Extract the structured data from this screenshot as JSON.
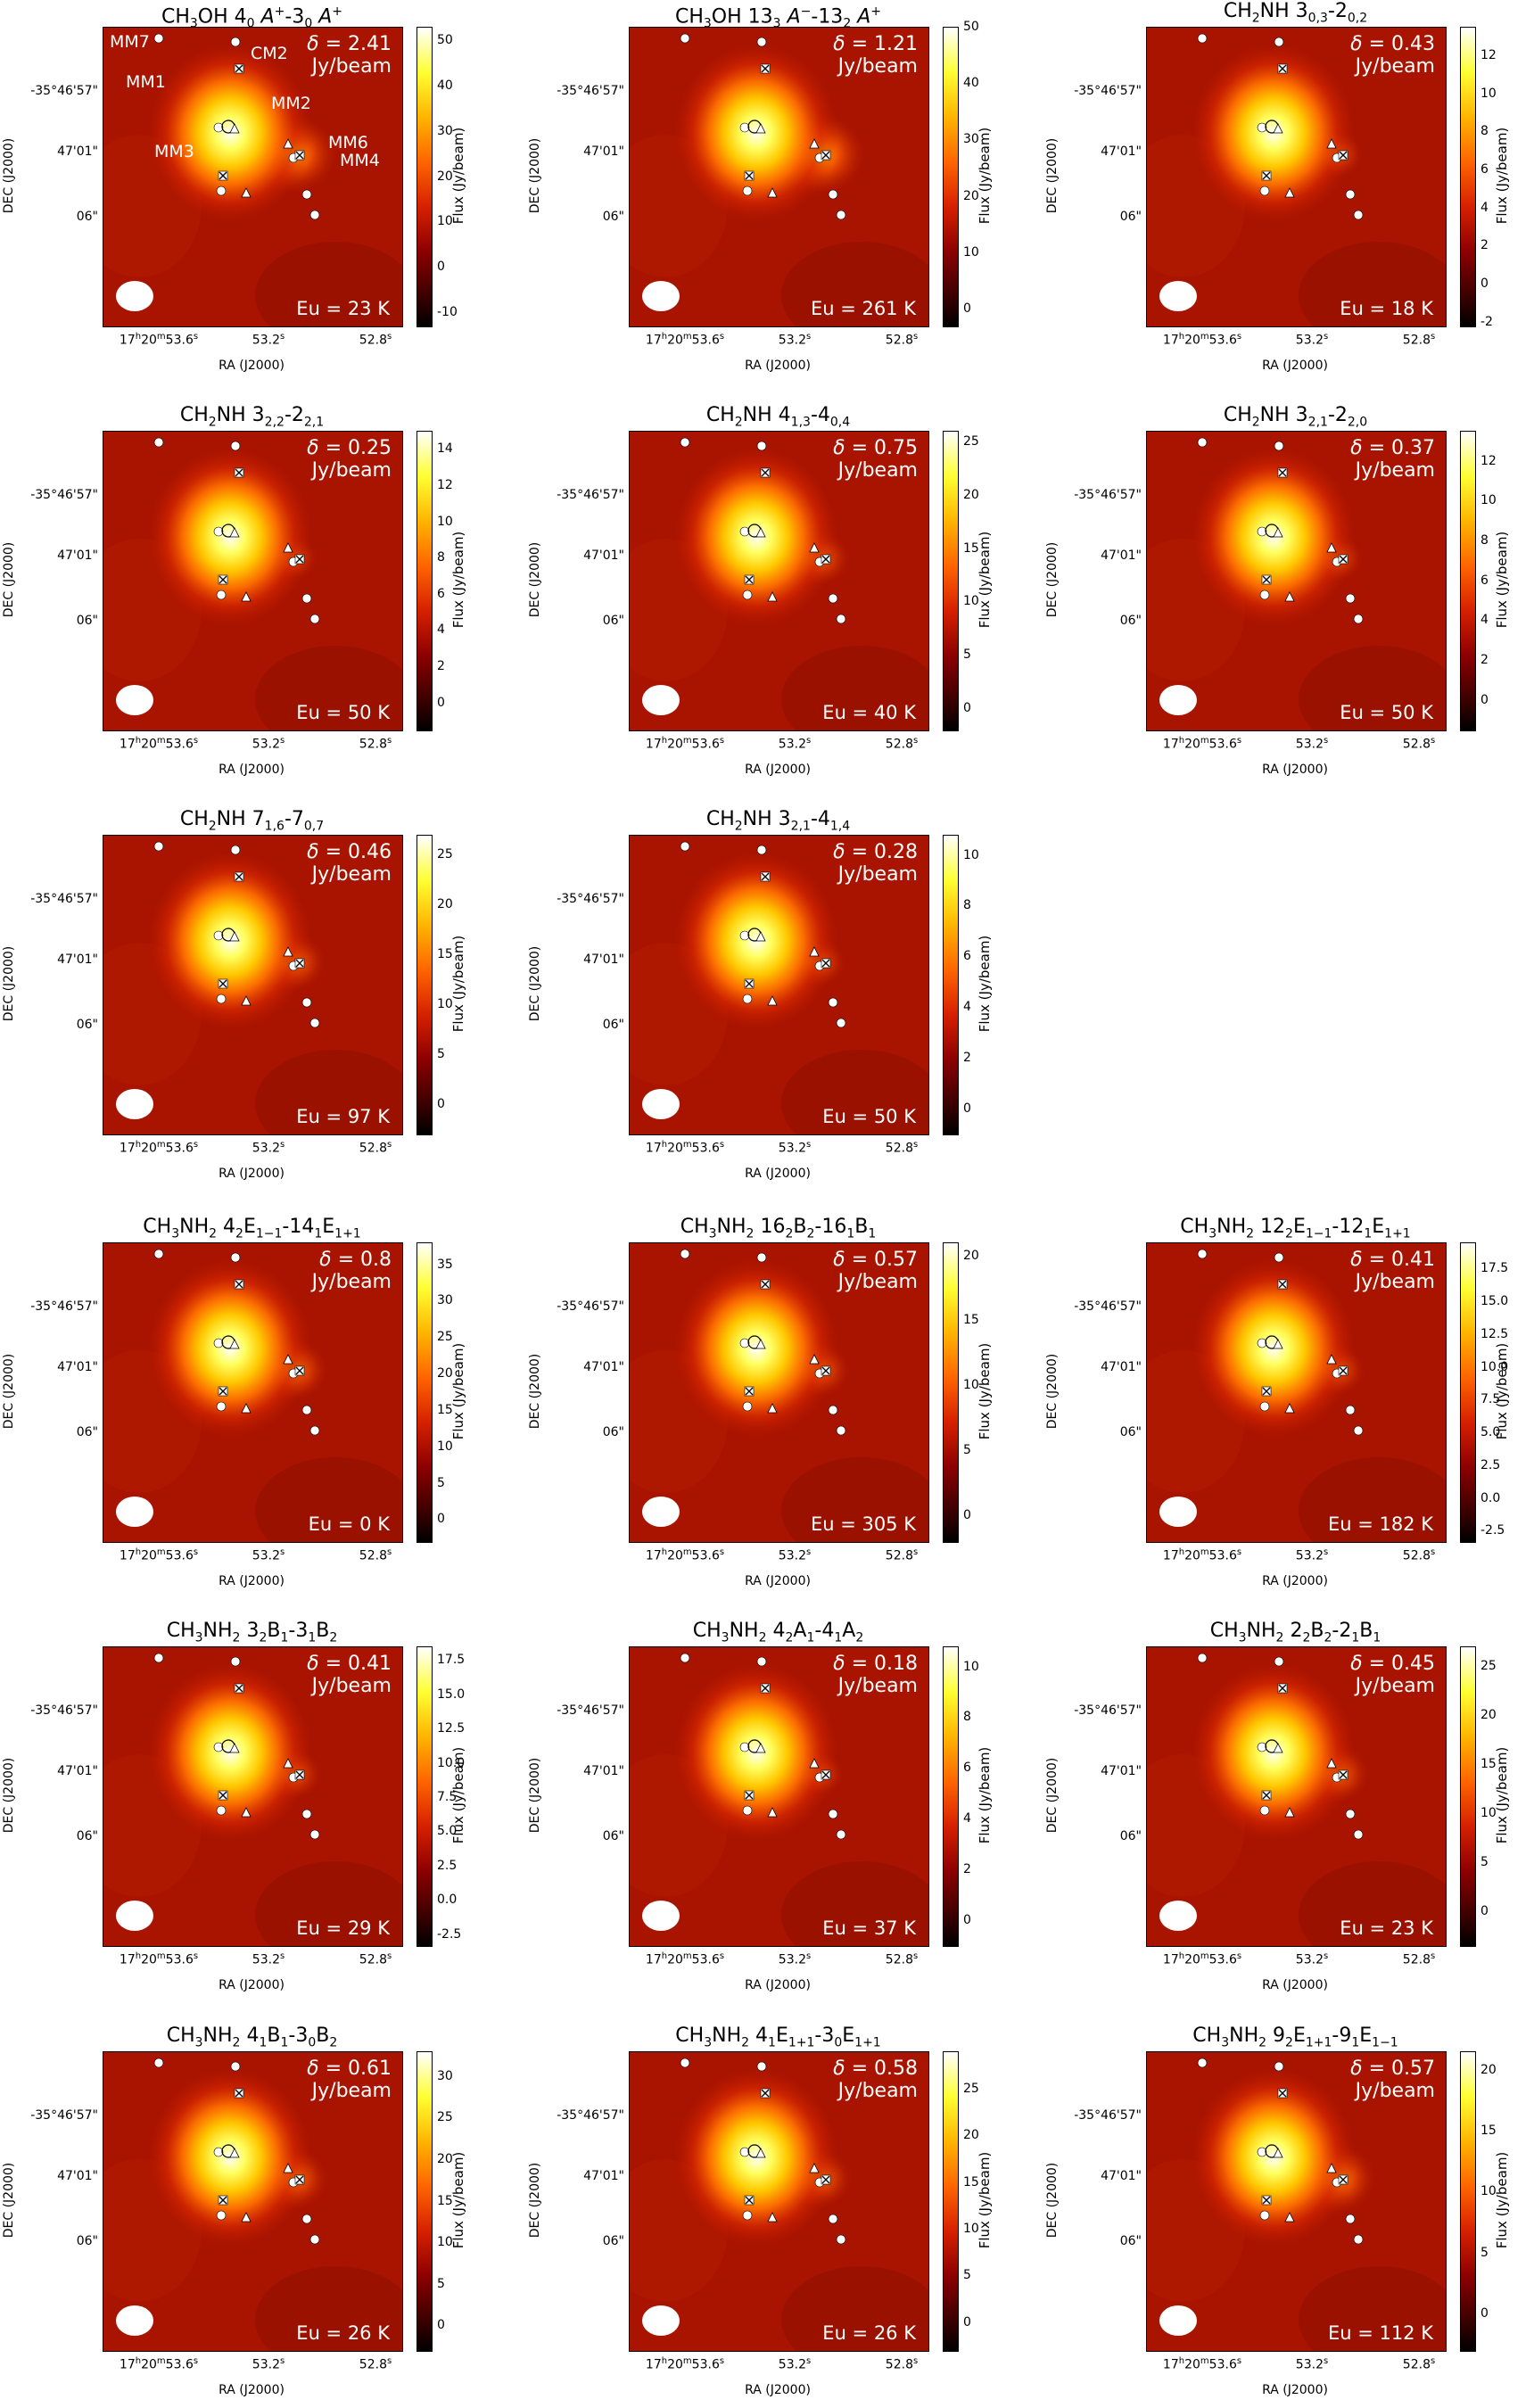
{
  "chart_data": {
    "type": "heatmap",
    "figure": "Integrated intensity maps of CH3OH, CH2NH and CH3NH2 transitions",
    "axes": {
      "xlabel": "RA (J2000)",
      "ylabel": "DEC (J2000)",
      "colorbar_label": "Flux (Jy/beam)",
      "xticks": [
        "17h20m53.6s",
        "53.2s",
        "52.8s"
      ],
      "yticks": [
        "-35°46'57\"",
        "47'01\"",
        "06\""
      ]
    },
    "source_labels": [
      "MM7",
      "MM1",
      "CM2",
      "MM2",
      "MM3",
      "MM6",
      "MM4"
    ],
    "panels": [
      {
        "name": "CH₃OH 4₀ A⁺-3₀ A⁺",
        "mol": "CH<sub>3</sub>OH",
        "q": "4<sub>0</sub> <i>A</i><sup>+</sup>-3<sub>0</sub> <i>A</i><sup>+</sup>",
        "delta": "2.41",
        "eu": "23 K",
        "cticks": [
          "-10",
          "0",
          "10",
          "20",
          "30",
          "40",
          "50"
        ],
        "cmin": -13,
        "cmax": 53,
        "peak": 53,
        "mm2": 0.55,
        "labels": true
      },
      {
        "name": "CH₃OH 13₃ A⁻-13₂ A⁺",
        "mol": "CH<sub>3</sub>OH",
        "q": "13<sub>3</sub> <i>A</i><sup>−</sup>-13<sub>2</sub> <i>A</i><sup>+</sup>",
        "delta": "1.21",
        "eu": "261 K",
        "cticks": [
          "0",
          "10",
          "20",
          "30",
          "40",
          "50"
        ],
        "cmin": -3,
        "cmax": 50,
        "peak": 49,
        "mm2": 0.6,
        "labels": false
      },
      {
        "name": "CH₂NH 3₀,₃-2₀,₂",
        "mol": "CH<sub>2</sub>NH",
        "q": "3<sub>0,3</sub>-2<sub>0,2</sub>",
        "delta": "0.43",
        "eu": "18 K",
        "cticks": [
          "-2",
          "0",
          "2",
          "4",
          "6",
          "8",
          "10",
          "12"
        ],
        "cmin": -2.2,
        "cmax": 13.5,
        "peak": 13,
        "mm2": 0.15,
        "labels": false
      },
      {
        "name": "CH₂NH 3₂,₂-2₂,₁",
        "mol": "CH<sub>2</sub>NH",
        "q": "3<sub>2,2</sub>-2<sub>2,1</sub>",
        "delta": "0.25",
        "eu": "50 K",
        "cticks": [
          "0",
          "2",
          "4",
          "6",
          "8",
          "10",
          "12",
          "14"
        ],
        "cmin": -1.5,
        "cmax": 15,
        "peak": 14.5,
        "mm2": 0.1,
        "labels": false
      },
      {
        "name": "CH₂NH 4₁,₃-4₀,₄",
        "mol": "CH<sub>2</sub>NH",
        "q": "4<sub>1,3</sub>-4<sub>0,4</sub>",
        "delta": "0.75",
        "eu": "40 K",
        "cticks": [
          "0",
          "5",
          "10",
          "15",
          "20",
          "25"
        ],
        "cmin": -2,
        "cmax": 26,
        "peak": 25,
        "mm2": 0.25,
        "labels": false
      },
      {
        "name": "CH₂NH 3₂,₁-2₂,₀",
        "mol": "CH<sub>2</sub>NH",
        "q": "3<sub>2,1</sub>-2<sub>2,0</sub>",
        "delta": "0.37",
        "eu": "50 K",
        "cticks": [
          "0",
          "2",
          "4",
          "6",
          "8",
          "10",
          "12"
        ],
        "cmin": -1.5,
        "cmax": 13.5,
        "peak": 13,
        "mm2": 0.15,
        "labels": false
      },
      {
        "name": "CH₂NH 7₁,₆-7₀,₇",
        "mol": "CH<sub>2</sub>NH",
        "q": "7<sub>1,6</sub>-7<sub>0,7</sub>",
        "delta": "0.46",
        "eu": "97 K",
        "cticks": [
          "0",
          "5",
          "10",
          "15",
          "20",
          "25"
        ],
        "cmin": -3,
        "cmax": 27,
        "peak": 26,
        "mm2": 0.3,
        "labels": false
      },
      {
        "name": "CH₂NH 3₂,₁-4₁,₄",
        "mol": "CH<sub>2</sub>NH",
        "q": "3<sub>2,1</sub>-4<sub>1,4</sub>",
        "delta": "0.28",
        "eu": "50 K",
        "cticks": [
          "0",
          "2",
          "4",
          "6",
          "8",
          "10"
        ],
        "cmin": -1,
        "cmax": 10.8,
        "peak": 10.5,
        "mm2": 0.15,
        "labels": false
      },
      {
        "name": "CH₃NH₂ 4₂E₁₋₁-14₁E₁₊₁",
        "mol": "CH<sub>3</sub>NH<sub>2</sub>",
        "q": "4<sub>2</sub>E<sub>1−1</sub>-14<sub>1</sub>E<sub>1+1</sub>",
        "delta": "0.8",
        "eu": "0 K",
        "cticks": [
          "0",
          "5",
          "10",
          "15",
          "20",
          "25",
          "30",
          "35"
        ],
        "cmin": -3,
        "cmax": 38,
        "peak": 37,
        "mm2": 0.35,
        "labels": false
      },
      {
        "name": "CH₃NH₂ 16₂B₂-16₁B₁",
        "mol": "CH<sub>3</sub>NH<sub>2</sub>",
        "q": "16<sub>2</sub>B<sub>2</sub>-16<sub>1</sub>B<sub>1</sub>",
        "delta": "0.57",
        "eu": "305 K",
        "cticks": [
          "0",
          "5",
          "10",
          "15",
          "20"
        ],
        "cmin": -2,
        "cmax": 21,
        "peak": 20.5,
        "mm2": 0.25,
        "labels": false
      },
      {
        "name": "CH₃NH₂ 12₂E₁₋₁-12₁E₁₊₁",
        "mol": "CH<sub>3</sub>NH<sub>2</sub>",
        "q": "12<sub>2</sub>E<sub>1−1</sub>-12<sub>1</sub>E<sub>1+1</sub>",
        "delta": "0.41",
        "eu": "182 K",
        "cticks": [
          "-2.5",
          "0.0",
          "2.5",
          "5.0",
          "7.5",
          "10.0",
          "12.5",
          "15.0",
          "17.5"
        ],
        "cmin": -3.3,
        "cmax": 19.5,
        "peak": 19,
        "mm2": 0.2,
        "labels": false
      },
      {
        "name": "CH₃NH₂ 3₂B₁-3₁B₂",
        "mol": "CH<sub>3</sub>NH<sub>2</sub>",
        "q": "3<sub>2</sub>B<sub>1</sub>-3<sub>1</sub>B<sub>2</sub>",
        "delta": "0.41",
        "eu": "29 K",
        "cticks": [
          "-2.5",
          "0.0",
          "2.5",
          "5.0",
          "7.5",
          "10.0",
          "12.5",
          "15.0",
          "17.5"
        ],
        "cmin": -3.3,
        "cmax": 18.5,
        "peak": 18,
        "mm2": 0.2,
        "labels": false
      },
      {
        "name": "CH₃NH₂ 4₂A₁-4₁A₂",
        "mol": "CH<sub>3</sub>NH<sub>2</sub>",
        "q": "4<sub>2</sub>A<sub>1</sub>-4<sub>1</sub>A<sub>2</sub>",
        "delta": "0.18",
        "eu": "37 K",
        "cticks": [
          "0",
          "2",
          "4",
          "6",
          "8",
          "10"
        ],
        "cmin": -1,
        "cmax": 10.8,
        "peak": 10.5,
        "mm2": 0.1,
        "labels": false
      },
      {
        "name": "CH₃NH₂ 2₂B₂-2₁B₁",
        "mol": "CH<sub>3</sub>NH<sub>2</sub>",
        "q": "2<sub>2</sub>B<sub>2</sub>-2<sub>1</sub>B<sub>1</sub>",
        "delta": "0.45",
        "eu": "23 K",
        "cticks": [
          "0",
          "5",
          "10",
          "15",
          "20",
          "25"
        ],
        "cmin": -3.5,
        "cmax": 27,
        "peak": 26,
        "mm2": 0.3,
        "labels": false
      },
      {
        "name": "CH₃NH₂ 4₁B₁-3₀B₂",
        "mol": "CH<sub>3</sub>NH<sub>2</sub>",
        "q": "4<sub>1</sub>B<sub>1</sub>-3<sub>0</sub>B<sub>2</sub>",
        "delta": "0.61",
        "eu": "26 K",
        "cticks": [
          "0",
          "5",
          "10",
          "15",
          "20",
          "25",
          "30"
        ],
        "cmin": -3,
        "cmax": 33,
        "peak": 32,
        "mm2": 0.35,
        "labels": false
      },
      {
        "name": "CH₃NH₂ 4₁E₁₊₁-3₀E₁₊₁",
        "mol": "CH<sub>3</sub>NH<sub>2</sub>",
        "q": "4<sub>1</sub>E<sub>1+1</sub>-3<sub>0</sub>E<sub>1+1</sub>",
        "delta": "0.58",
        "eu": "26 K",
        "cticks": [
          "0",
          "5",
          "10",
          "15",
          "20",
          "25"
        ],
        "cmin": -3,
        "cmax": 29,
        "peak": 28,
        "mm2": 0.3,
        "labels": false
      },
      {
        "name": "CH₃NH₂ 9₂E₁₊₁-9₁E₁₋₁",
        "mol": "CH<sub>3</sub>NH<sub>2</sub>",
        "q": "9<sub>2</sub>E<sub>1+1</sub>-9<sub>1</sub>E<sub>1−1</sub>",
        "delta": "0.57",
        "eu": "112 K",
        "cticks": [
          "0",
          "5",
          "10",
          "15",
          "20"
        ],
        "cmin": -3,
        "cmax": 21.5,
        "peak": 21,
        "mm2": 0.45,
        "labels": false
      }
    ]
  }
}
